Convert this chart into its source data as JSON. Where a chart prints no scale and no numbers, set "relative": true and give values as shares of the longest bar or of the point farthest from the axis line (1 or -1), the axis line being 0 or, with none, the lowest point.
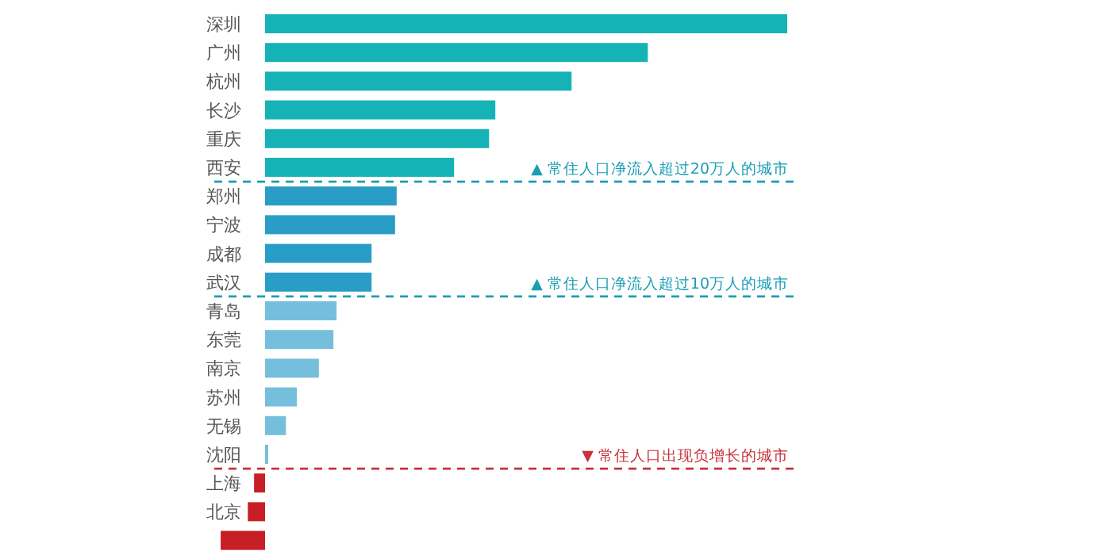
{
  "chart_data": {
    "type": "bar",
    "orientation": "horizontal",
    "relative": true,
    "categories": [
      "深圳",
      "广州",
      "杭州",
      "长沙",
      "重庆",
      "西安",
      "郑州",
      "宁波",
      "成都",
      "武汉",
      "青岛",
      "东莞",
      "南京",
      "苏州",
      "无锡",
      "沈阳",
      "上海",
      "北京",
      null
    ],
    "values": [
      1,
      0.733,
      0.587,
      0.441,
      0.429,
      0.362,
      0.252,
      0.249,
      0.204,
      0.204,
      0.137,
      0.131,
      0.103,
      0.061,
      0.04,
      0.006,
      -0.021,
      -0.033,
      -0.085
    ],
    "colors": [
      "#16b3b6",
      "#16b3b6",
      "#16b3b6",
      "#16b3b6",
      "#16b3b6",
      "#16b3b6",
      "#2a9dc6",
      "#2a9dc6",
      "#2a9dc6",
      "#2a9dc6",
      "#76bfdc",
      "#76bfdc",
      "#76bfdc",
      "#76bfdc",
      "#76bfdc",
      "#76bfdc",
      "#c81e25",
      "#c81e25",
      "#c81e25"
    ],
    "ref_lines": [
      {
        "axis": "y",
        "value": "西安",
        "label": "▲ 常住人口净流入超过20万人的城市",
        "color": "#1a9db5",
        "line_style": "dashed"
      },
      {
        "axis": "y",
        "value": "武汉",
        "label": "▲ 常住人口净流入超过10万人的城市",
        "color": "#1a9db5",
        "line_style": "dashed"
      },
      {
        "axis": "y",
        "value": "沈阳",
        "label": "▼ 常住人口出现负增长的城市",
        "color": "#c8323a",
        "line_style": "dashed"
      }
    ]
  }
}
